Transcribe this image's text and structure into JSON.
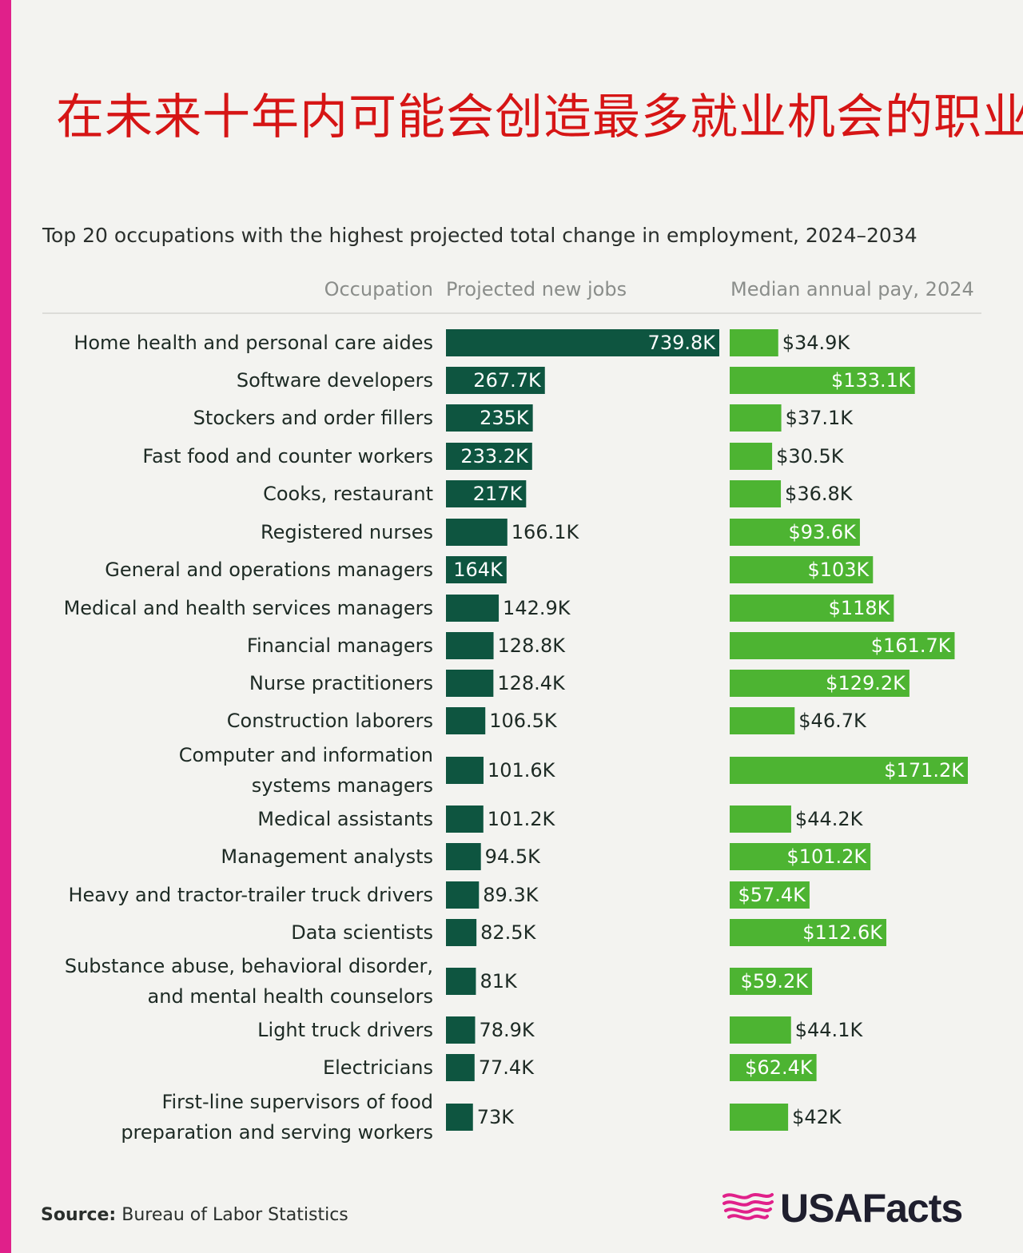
{
  "headline": "在未来十年内可能会创造最多就业机会的职业",
  "subtitle": "Top 20 occupations with the highest projected total change in employment, 2024–2034",
  "headers": {
    "occupation": "Occupation",
    "jobs": "Projected new jobs",
    "pay": "Median annual pay, 2024"
  },
  "source": {
    "label": "Source:",
    "text": "Bureau of Labor Statistics"
  },
  "logo": {
    "text": "USAFacts",
    "icon": "usafacts-flag-map-icon"
  },
  "colors": {
    "jobs_bar": "#0e5540",
    "pay_bar": "#4db432",
    "headline": "#d61515",
    "accent_stripe": "#e0208a"
  },
  "chart_data": {
    "type": "bar",
    "orientation": "horizontal",
    "title": "Top 20 occupations with the highest projected total change in employment, 2024–2034",
    "categories": [
      "Home health and personal care aides",
      "Software developers",
      "Stockers and order fillers",
      "Fast food and counter workers",
      "Cooks, restaurant",
      "Registered nurses",
      "General and operations managers",
      "Medical and health services managers",
      "Financial managers",
      "Nurse practitioners",
      "Construction laborers",
      "Computer and information systems managers",
      "Medical assistants",
      "Management analysts",
      "Heavy and tractor-trailer truck drivers",
      "Data scientists",
      "Substance abuse, behavioral disorder, and mental health counselors",
      "Light truck drivers",
      "Electricians",
      "First-line supervisors of food preparation and serving workers"
    ],
    "category_lines": [
      [
        "Home health and personal care aides"
      ],
      [
        "Software developers"
      ],
      [
        "Stockers and order fillers"
      ],
      [
        "Fast food and counter workers"
      ],
      [
        "Cooks, restaurant"
      ],
      [
        "Registered nurses"
      ],
      [
        "General and operations managers"
      ],
      [
        "Medical and health services managers"
      ],
      [
        "Financial managers"
      ],
      [
        "Nurse practitioners"
      ],
      [
        "Construction laborers"
      ],
      [
        "Computer and information",
        "systems managers"
      ],
      [
        "Medical assistants"
      ],
      [
        "Management analysts"
      ],
      [
        "Heavy and tractor-trailer truck drivers"
      ],
      [
        "Data scientists"
      ],
      [
        "Substance abuse, behavioral disorder,",
        "and mental health counselors"
      ],
      [
        "Light truck drivers"
      ],
      [
        "Electricians"
      ],
      [
        "First-line supervisors of food",
        "preparation and serving workers"
      ]
    ],
    "series": [
      {
        "name": "Projected new jobs",
        "values": [
          739.8,
          267.7,
          235,
          233.2,
          217,
          166.1,
          164,
          142.9,
          128.8,
          128.4,
          106.5,
          101.6,
          101.2,
          94.5,
          89.3,
          82.5,
          81,
          78.9,
          77.4,
          73
        ],
        "labels": [
          "739.8K",
          "267.7K",
          "235K",
          "233.2K",
          "217K",
          "166.1K",
          "164K",
          "142.9K",
          "128.8K",
          "128.4K",
          "106.5K",
          "101.6K",
          "101.2K",
          "94.5K",
          "89.3K",
          "82.5K",
          "81K",
          "78.9K",
          "77.4K",
          "73K"
        ],
        "unit": "thousand jobs"
      },
      {
        "name": "Median annual pay, 2024",
        "values": [
          34.9,
          133.1,
          37.1,
          30.5,
          36.8,
          93.6,
          103,
          118,
          161.7,
          129.2,
          46.7,
          171.2,
          44.2,
          101.2,
          57.4,
          112.6,
          59.2,
          44.1,
          62.4,
          42
        ],
        "labels": [
          "$34.9K",
          "$133.1K",
          "$37.1K",
          "$30.5K",
          "$36.8K",
          "$93.6K",
          "$103K",
          "$118K",
          "$161.7K",
          "$129.2K",
          "$46.7K",
          "$171.2K",
          "$44.2K",
          "$101.2K",
          "$57.4K",
          "$112.6K",
          "$59.2K",
          "$44.1K",
          "$62.4K",
          "$42K"
        ],
        "unit": "thousand USD"
      }
    ],
    "xlabel": "",
    "ylabel": "Occupation",
    "legend": "none",
    "grid": false
  }
}
